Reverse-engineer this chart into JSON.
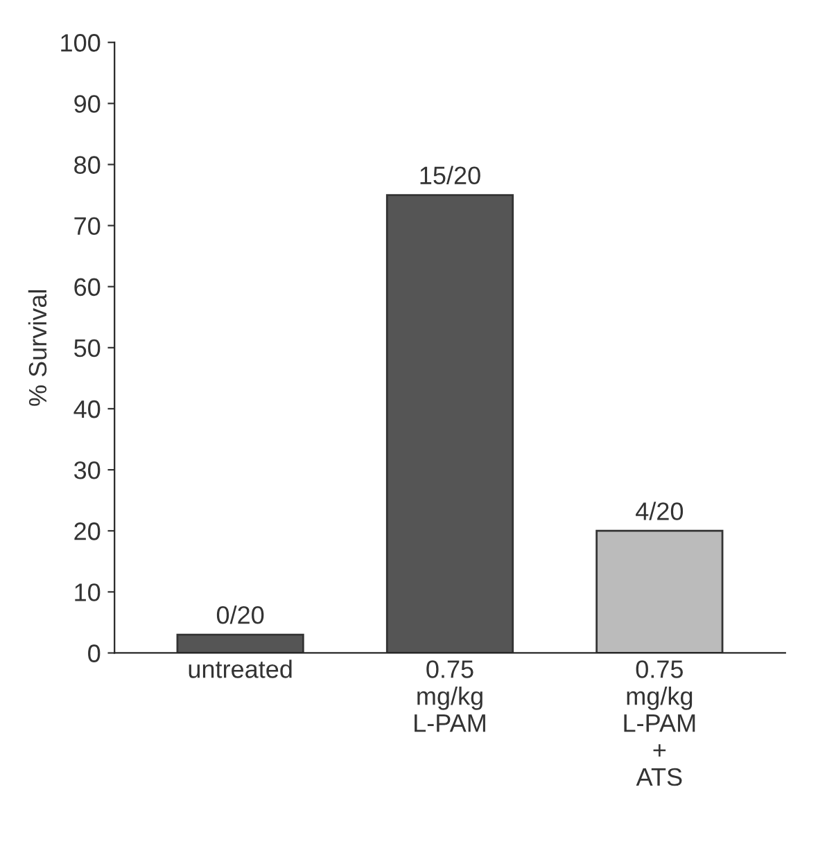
{
  "chart_data": {
    "type": "bar",
    "ylabel": "% Survival",
    "categories": [
      "untreated",
      "0.75\nmg/kg\nL-PAM",
      "0.75\nmg/kg\nL-PAM\n+\nATS"
    ],
    "values": [
      3,
      75,
      20
    ],
    "colors": [
      "#555555",
      "#555555",
      "#bbbbbb"
    ],
    "value_labels": [
      "0/20",
      "15/20",
      "4/20"
    ],
    "ylim": [
      0,
      100
    ],
    "yticks": [
      0,
      10,
      20,
      30,
      40,
      50,
      60,
      70,
      80,
      90,
      100
    ],
    "grid": false,
    "legend": false
  }
}
